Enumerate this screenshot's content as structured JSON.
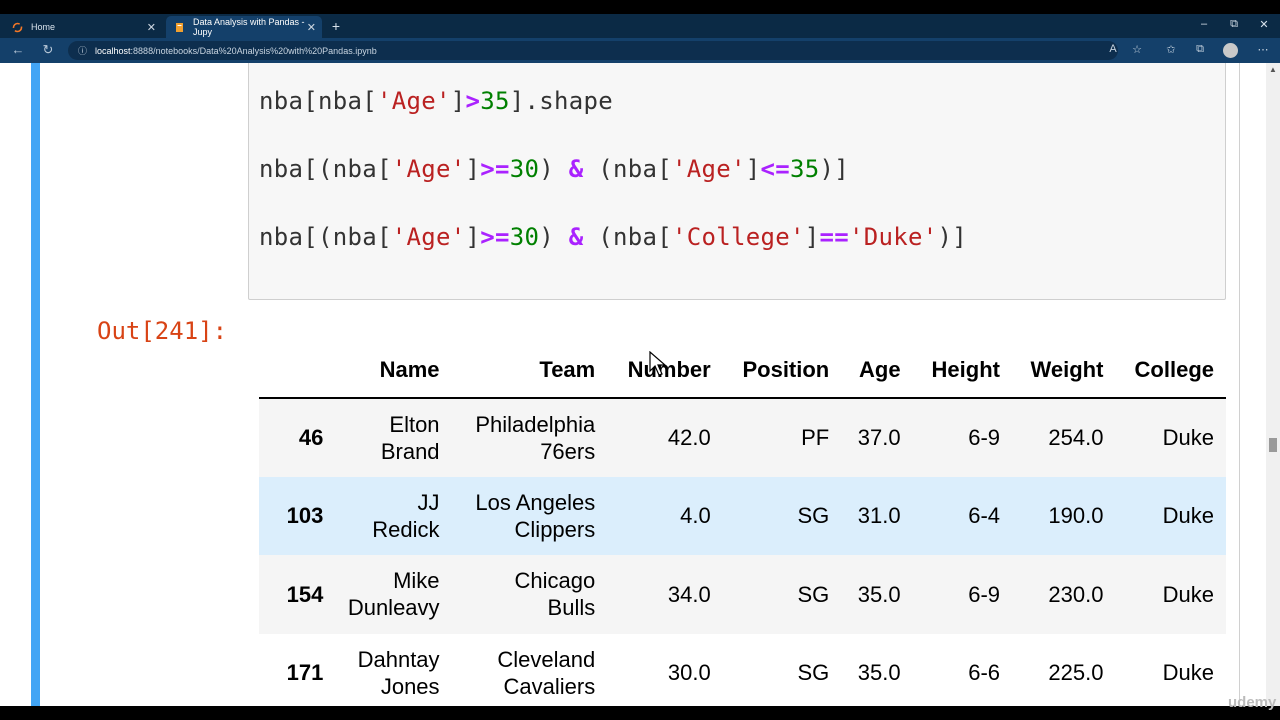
{
  "browser": {
    "tabs": [
      {
        "label": "Home",
        "icon": "jupyter-icon"
      },
      {
        "label": "Data Analysis with Pandas - Jupy",
        "icon": "notebook-icon"
      }
    ],
    "new_tab": "+",
    "url_host": "localhost",
    "url_rest": ":8888/notebooks/Data%20Analysis%20with%20Pandas.ipynb",
    "window_controls": {
      "minimize": "–",
      "restore": "⧉",
      "close": "✕"
    }
  },
  "notebook": {
    "code_lines": [
      {
        "parts": [
          {
            "t": "nba[nba[",
            "c": ""
          },
          {
            "t": "'Age'",
            "c": "str"
          },
          {
            "t": "]",
            "c": ""
          },
          {
            "t": ">",
            "c": "op"
          },
          {
            "t": "35",
            "c": "num"
          },
          {
            "t": "].shape",
            "c": ""
          }
        ]
      },
      {
        "parts": [
          {
            "t": "nba[(nba[",
            "c": ""
          },
          {
            "t": "'Age'",
            "c": "str"
          },
          {
            "t": "]",
            "c": ""
          },
          {
            "t": ">=",
            "c": "op"
          },
          {
            "t": "30",
            "c": "num"
          },
          {
            "t": ") ",
            "c": ""
          },
          {
            "t": "&",
            "c": "op"
          },
          {
            "t": " (nba[",
            "c": ""
          },
          {
            "t": "'Age'",
            "c": "str"
          },
          {
            "t": "]",
            "c": ""
          },
          {
            "t": "<=",
            "c": "op"
          },
          {
            "t": "35",
            "c": "num"
          },
          {
            "t": ")]",
            "c": ""
          }
        ]
      },
      {
        "parts": [
          {
            "t": "nba[(nba[",
            "c": ""
          },
          {
            "t": "'Age'",
            "c": "str"
          },
          {
            "t": "]",
            "c": ""
          },
          {
            "t": ">=",
            "c": "op"
          },
          {
            "t": "30",
            "c": "num"
          },
          {
            "t": ") ",
            "c": ""
          },
          {
            "t": "&",
            "c": "op"
          },
          {
            "t": " (nba[",
            "c": ""
          },
          {
            "t": "'College'",
            "c": "str"
          },
          {
            "t": "]",
            "c": ""
          },
          {
            "t": "==",
            "c": "op"
          },
          {
            "t": "'Duke'",
            "c": "str"
          },
          {
            "t": ")]",
            "c": ""
          }
        ]
      }
    ],
    "out_prompt": "Out[241]:",
    "table": {
      "columns": [
        "",
        "Name",
        "Team",
        "Number",
        "Position",
        "Age",
        "Height",
        "Weight",
        "College"
      ],
      "rows": [
        [
          "46",
          [
            "Elton",
            "Brand"
          ],
          [
            "Philadelphia",
            "76ers"
          ],
          "42.0",
          "PF",
          "37.0",
          "6-9",
          "254.0",
          "Duke"
        ],
        [
          "103",
          [
            "JJ",
            "Redick"
          ],
          [
            "Los Angeles",
            "Clippers"
          ],
          "4.0",
          "SG",
          "31.0",
          "6-4",
          "190.0",
          "Duke"
        ],
        [
          "154",
          [
            "Mike",
            "Dunleavy"
          ],
          [
            "Chicago",
            "Bulls"
          ],
          "34.0",
          "SG",
          "35.0",
          "6-9",
          "230.0",
          "Duke"
        ],
        [
          "171",
          [
            "Dahntay",
            "Jones"
          ],
          [
            "Cleveland",
            "Cavaliers"
          ],
          "30.0",
          "SG",
          "35.0",
          "6-6",
          "225.0",
          "Duke"
        ]
      ],
      "highlighted_row": 1
    }
  },
  "watermark": "udemy",
  "colors": {
    "cell_bar": "#42a5f5",
    "string": "#ba2121",
    "number": "#008000",
    "operator": "#aa22ff",
    "out_prompt": "#d84315",
    "row_highlight": "#dbeefc"
  }
}
